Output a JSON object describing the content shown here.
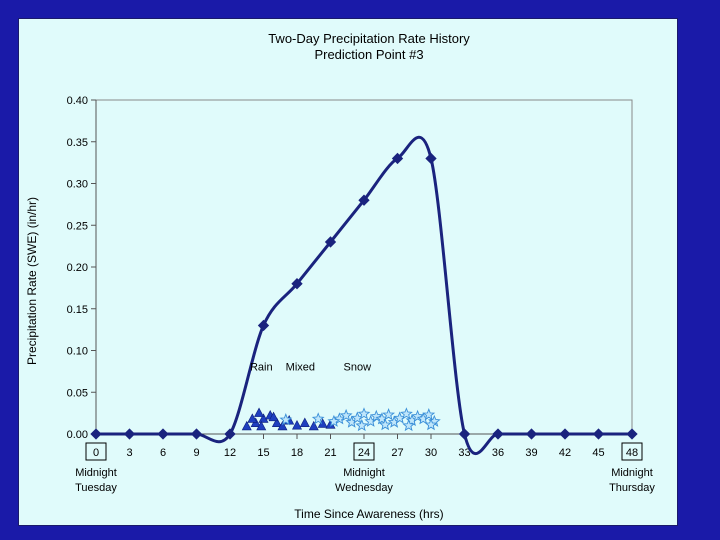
{
  "chart_data": {
    "type": "line",
    "title": "Two-Day Precipitation Rate History",
    "subtitle": "Prediction Point #3",
    "xlabel": "Time Since Awareness (hrs)",
    "ylabel": "Precipitation Rate (SWE) (in/hr)",
    "xlim": [
      0,
      48
    ],
    "ylim": [
      0,
      0.4
    ],
    "x_ticks": [
      0,
      3,
      6,
      9,
      12,
      15,
      18,
      21,
      24,
      27,
      30,
      33,
      36,
      39,
      42,
      45,
      48
    ],
    "x_tick_labels": [
      "0",
      "3",
      "6",
      "9",
      "12",
      "15",
      "18",
      "21",
      "24",
      "27",
      "30",
      "33",
      "36",
      "39",
      "42",
      "45",
      "48"
    ],
    "boxed_ticks": [
      0,
      24,
      48
    ],
    "y_ticks": [
      0.0,
      0.05,
      0.1,
      0.15,
      0.2,
      0.25,
      0.3,
      0.35,
      0.4
    ],
    "y_tick_labels": [
      "0.00",
      "0.05",
      "0.10",
      "0.15",
      "0.20",
      "0.25",
      "0.30",
      "0.35",
      "0.40"
    ],
    "grid": false,
    "series": [
      {
        "x": [
          0,
          3,
          6,
          9,
          12,
          15,
          18,
          21,
          24,
          27,
          30,
          33,
          36,
          39,
          42,
          45,
          48
        ],
        "values": [
          0,
          0,
          0,
          0,
          0,
          0.13,
          0.18,
          0.23,
          0.28,
          0.33,
          0.33,
          0,
          0,
          0,
          0,
          0,
          0
        ],
        "color": "#1a237e"
      }
    ],
    "time_labels": [
      {
        "x": 0,
        "lines": [
          "Midnight",
          "Tuesday"
        ]
      },
      {
        "x": 24,
        "lines": [
          "Midnight",
          "Wednesday"
        ]
      },
      {
        "x": 48,
        "lines": [
          "Midnight",
          "Thursday"
        ]
      }
    ],
    "precip_type_labels": [
      {
        "x": 14.8,
        "text": "Rain"
      },
      {
        "x": 18.3,
        "text": "Mixed"
      },
      {
        "x": 23.4,
        "text": "Snow"
      }
    ],
    "rain_markers": {
      "color": "#1f3fbf",
      "points": [
        [
          13.5,
          0.009
        ],
        [
          14.3,
          0.013
        ],
        [
          15.0,
          0.018
        ],
        [
          15.6,
          0.022
        ],
        [
          14.0,
          0.018
        ],
        [
          14.8,
          0.009
        ],
        [
          16.2,
          0.013
        ],
        [
          15.9,
          0.02
        ],
        [
          16.7,
          0.009
        ],
        [
          17.3,
          0.016
        ],
        [
          18.0,
          0.01
        ],
        [
          18.7,
          0.013
        ],
        [
          19.5,
          0.009
        ],
        [
          20.3,
          0.012
        ],
        [
          21.0,
          0.011
        ],
        [
          14.6,
          0.025
        ]
      ]
    },
    "snow_markers": {
      "color": "#3a8fd8",
      "points": [
        [
          21.8,
          0.018
        ],
        [
          22.4,
          0.022
        ],
        [
          22.9,
          0.014
        ],
        [
          23.4,
          0.019
        ],
        [
          24.0,
          0.024
        ],
        [
          24.6,
          0.015
        ],
        [
          25.1,
          0.021
        ],
        [
          25.6,
          0.018
        ],
        [
          26.2,
          0.023
        ],
        [
          26.7,
          0.014
        ],
        [
          27.2,
          0.019
        ],
        [
          27.8,
          0.024
        ],
        [
          28.3,
          0.016
        ],
        [
          28.8,
          0.021
        ],
        [
          29.3,
          0.018
        ],
        [
          29.8,
          0.023
        ],
        [
          30.3,
          0.015
        ],
        [
          23.8,
          0.01
        ],
        [
          25.9,
          0.011
        ],
        [
          28.0,
          0.01
        ],
        [
          30.0,
          0.011
        ],
        [
          17.0,
          0.017
        ],
        [
          19.9,
          0.018
        ],
        [
          21.3,
          0.015
        ]
      ]
    }
  }
}
